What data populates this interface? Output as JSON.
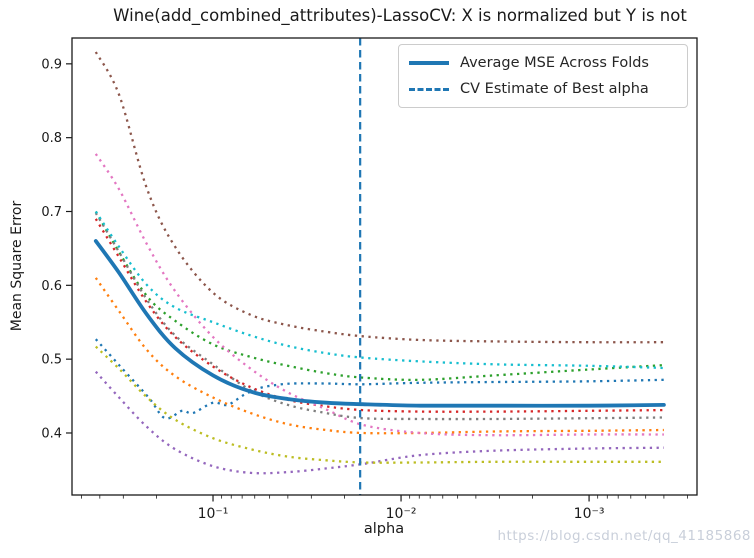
{
  "watermark": {
    "text": "https://blog.csdn.net/qq_41185868",
    "color": "#c9cfda"
  },
  "chart_data": {
    "type": "line",
    "title": "Wine(add_combined_attributes)-LassoCV: X is normalized but Y is not",
    "xlabel": "alpha",
    "ylabel": "Mean Square Error",
    "x_scale": "log",
    "x_inverted": true,
    "xlim_log10": [
      -0.25,
      -3.574
    ],
    "ylim": [
      0.316,
      0.935
    ],
    "grid": false,
    "accent_color": "#1f77b4",
    "best_alpha": 0.0165,
    "x_ticks": [
      {
        "value": 0.1,
        "label": "10⁻¹"
      },
      {
        "value": 0.01,
        "label": "10⁻²"
      },
      {
        "value": 0.001,
        "label": "10⁻³"
      }
    ],
    "y_ticks": [
      {
        "value": 0.4,
        "label": "0.4"
      },
      {
        "value": 0.5,
        "label": "0.5"
      },
      {
        "value": 0.6,
        "label": "0.6"
      },
      {
        "value": 0.7,
        "label": "0.7"
      },
      {
        "value": 0.8,
        "label": "0.8"
      },
      {
        "value": 0.9,
        "label": "0.9"
      }
    ],
    "legend": {
      "position": "upper right",
      "entries": [
        {
          "label": "Average MSE Across Folds",
          "style": "solid",
          "color": "#1f77b4"
        },
        {
          "label": "CV Estimate of Best alpha",
          "style": "dashed",
          "color": "#1f77b4"
        }
      ]
    },
    "average_series": {
      "name": "Average MSE Across Folds",
      "color": "#1f77b4",
      "points": [
        [
          0.42,
          0.66
        ],
        [
          0.316,
          0.617
        ],
        [
          0.224,
          0.56
        ],
        [
          0.159,
          0.515
        ],
        [
          0.1,
          0.478
        ],
        [
          0.063,
          0.456
        ],
        [
          0.04,
          0.446
        ],
        [
          0.025,
          0.441
        ],
        [
          0.016,
          0.439
        ],
        [
          0.0079,
          0.437
        ],
        [
          0.0032,
          0.437
        ],
        [
          0.001,
          0.437
        ],
        [
          0.0004,
          0.438
        ]
      ]
    },
    "fold_series": [
      {
        "name": "fold-1-mse",
        "color": "#1f77b4",
        "points": [
          [
            0.42,
            0.527
          ],
          [
            0.316,
            0.492
          ],
          [
            0.22,
            0.448
          ],
          [
            0.18,
            0.42
          ],
          [
            0.146,
            0.43
          ],
          [
            0.128,
            0.427
          ],
          [
            0.1,
            0.441
          ],
          [
            0.084,
            0.438
          ],
          [
            0.068,
            0.452
          ],
          [
            0.056,
            0.461
          ],
          [
            0.046,
            0.465
          ],
          [
            0.038,
            0.467
          ],
          [
            0.025,
            0.467
          ],
          [
            0.016,
            0.466
          ],
          [
            0.0079,
            0.468
          ],
          [
            0.0032,
            0.469
          ],
          [
            0.001,
            0.47
          ],
          [
            0.0004,
            0.472
          ]
        ]
      },
      {
        "name": "fold-2-mse",
        "color": "#ff7f0e",
        "points": [
          [
            0.42,
            0.61
          ],
          [
            0.316,
            0.565
          ],
          [
            0.224,
            0.512
          ],
          [
            0.159,
            0.477
          ],
          [
            0.1,
            0.448
          ],
          [
            0.063,
            0.427
          ],
          [
            0.04,
            0.412
          ],
          [
            0.025,
            0.404
          ],
          [
            0.016,
            0.4
          ],
          [
            0.0079,
            0.4
          ],
          [
            0.0032,
            0.402
          ],
          [
            0.001,
            0.403
          ],
          [
            0.0004,
            0.404
          ]
        ]
      },
      {
        "name": "fold-3-mse",
        "color": "#2ca02c",
        "points": [
          [
            0.42,
            0.7
          ],
          [
            0.316,
            0.645
          ],
          [
            0.224,
            0.585
          ],
          [
            0.159,
            0.552
          ],
          [
            0.1,
            0.52
          ],
          [
            0.063,
            0.503
          ],
          [
            0.04,
            0.491
          ],
          [
            0.025,
            0.481
          ],
          [
            0.016,
            0.475
          ],
          [
            0.0079,
            0.472
          ],
          [
            0.0032,
            0.478
          ],
          [
            0.001,
            0.486
          ],
          [
            0.0004,
            0.492
          ]
        ]
      },
      {
        "name": "fold-4-mse",
        "color": "#d62728",
        "points": [
          [
            0.42,
            0.69
          ],
          [
            0.316,
            0.638
          ],
          [
            0.224,
            0.576
          ],
          [
            0.159,
            0.53
          ],
          [
            0.1,
            0.49
          ],
          [
            0.063,
            0.462
          ],
          [
            0.04,
            0.445
          ],
          [
            0.025,
            0.436
          ],
          [
            0.016,
            0.431
          ],
          [
            0.0079,
            0.429
          ],
          [
            0.0032,
            0.429
          ],
          [
            0.001,
            0.43
          ],
          [
            0.0004,
            0.431
          ]
        ]
      },
      {
        "name": "fold-5-mse",
        "color": "#9467bd",
        "points": [
          [
            0.42,
            0.483
          ],
          [
            0.316,
            0.448
          ],
          [
            0.224,
            0.408
          ],
          [
            0.159,
            0.378
          ],
          [
            0.1,
            0.355
          ],
          [
            0.063,
            0.346
          ],
          [
            0.04,
            0.347
          ],
          [
            0.025,
            0.352
          ],
          [
            0.016,
            0.358
          ],
          [
            0.0079,
            0.37
          ],
          [
            0.0032,
            0.376
          ],
          [
            0.001,
            0.379
          ],
          [
            0.0004,
            0.38
          ]
        ]
      },
      {
        "name": "fold-6-mse",
        "color": "#8c564b",
        "points": [
          [
            0.42,
            0.916
          ],
          [
            0.316,
            0.858
          ],
          [
            0.224,
            0.73
          ],
          [
            0.159,
            0.652
          ],
          [
            0.1,
            0.59
          ],
          [
            0.063,
            0.56
          ],
          [
            0.04,
            0.546
          ],
          [
            0.025,
            0.537
          ],
          [
            0.016,
            0.531
          ],
          [
            0.0079,
            0.526
          ],
          [
            0.0032,
            0.524
          ],
          [
            0.001,
            0.523
          ],
          [
            0.0004,
            0.523
          ]
        ]
      },
      {
        "name": "fold-7-mse",
        "color": "#e377c2",
        "points": [
          [
            0.42,
            0.778
          ],
          [
            0.316,
            0.73
          ],
          [
            0.224,
            0.655
          ],
          [
            0.159,
            0.592
          ],
          [
            0.1,
            0.53
          ],
          [
            0.063,
            0.487
          ],
          [
            0.04,
            0.455
          ],
          [
            0.025,
            0.432
          ],
          [
            0.016,
            0.411
          ],
          [
            0.0079,
            0.4
          ],
          [
            0.0032,
            0.397
          ],
          [
            0.001,
            0.398
          ],
          [
            0.0004,
            0.398
          ]
        ]
      },
      {
        "name": "fold-8-mse",
        "color": "#7f7f7f",
        "points": [
          [
            0.42,
            0.698
          ],
          [
            0.316,
            0.645
          ],
          [
            0.224,
            0.58
          ],
          [
            0.159,
            0.532
          ],
          [
            0.1,
            0.493
          ],
          [
            0.063,
            0.458
          ],
          [
            0.04,
            0.438
          ],
          [
            0.025,
            0.427
          ],
          [
            0.016,
            0.42
          ],
          [
            0.0079,
            0.419
          ],
          [
            0.0032,
            0.419
          ],
          [
            0.001,
            0.42
          ],
          [
            0.0004,
            0.421
          ]
        ]
      },
      {
        "name": "fold-9-mse",
        "color": "#bcbd22",
        "points": [
          [
            0.42,
            0.517
          ],
          [
            0.316,
            0.487
          ],
          [
            0.224,
            0.448
          ],
          [
            0.159,
            0.418
          ],
          [
            0.1,
            0.393
          ],
          [
            0.063,
            0.378
          ],
          [
            0.04,
            0.368
          ],
          [
            0.025,
            0.363
          ],
          [
            0.016,
            0.36
          ],
          [
            0.0079,
            0.36
          ],
          [
            0.0032,
            0.361
          ],
          [
            0.001,
            0.361
          ],
          [
            0.0004,
            0.361
          ]
        ]
      },
      {
        "name": "fold-10-mse",
        "color": "#17becf",
        "points": [
          [
            0.42,
            0.7
          ],
          [
            0.316,
            0.652
          ],
          [
            0.224,
            0.6
          ],
          [
            0.159,
            0.57
          ],
          [
            0.1,
            0.55
          ],
          [
            0.063,
            0.532
          ],
          [
            0.04,
            0.518
          ],
          [
            0.025,
            0.508
          ],
          [
            0.016,
            0.502
          ],
          [
            0.0079,
            0.497
          ],
          [
            0.0032,
            0.493
          ],
          [
            0.001,
            0.491
          ],
          [
            0.0004,
            0.488
          ]
        ]
      }
    ]
  }
}
